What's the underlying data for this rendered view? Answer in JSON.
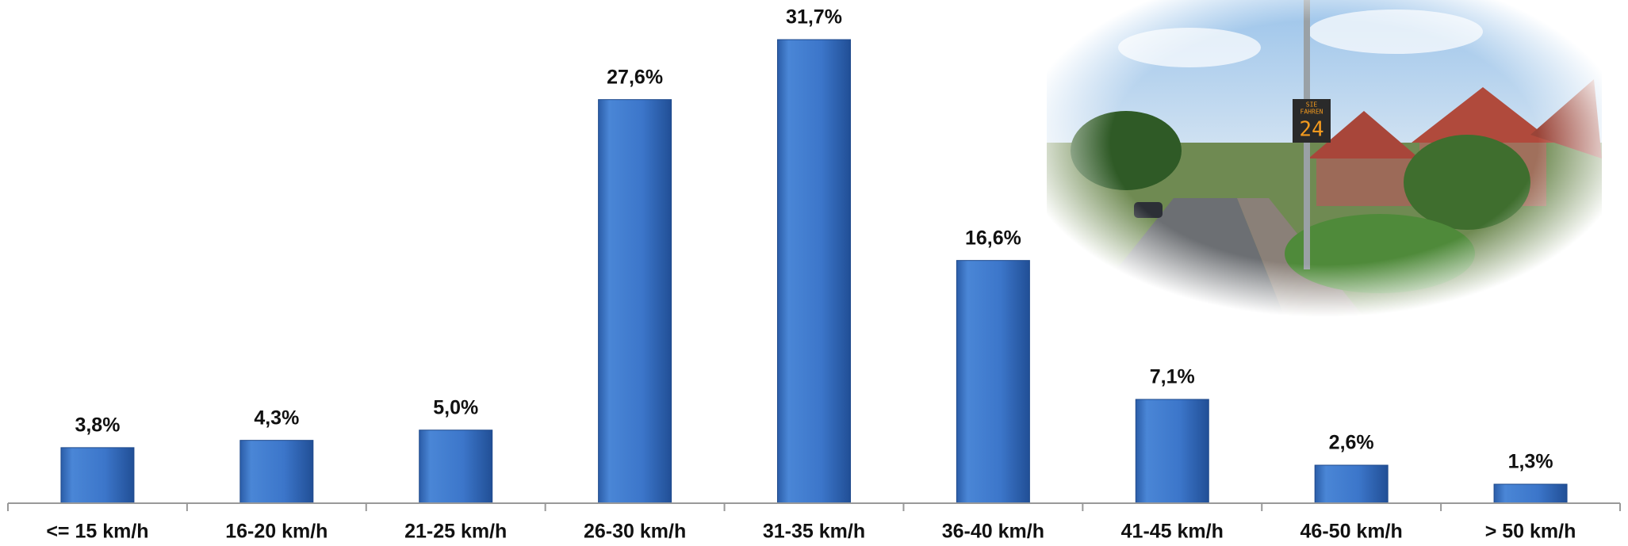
{
  "chart_data": {
    "type": "bar",
    "categories": [
      "<= 15 km/h",
      "16-20 km/h",
      "21-25 km/h",
      "26-30 km/h",
      "31-35 km/h",
      "36-40 km/h",
      "41-45 km/h",
      "46-50 km/h",
      "> 50 km/h"
    ],
    "values": [
      3.8,
      4.3,
      5.0,
      27.6,
      31.7,
      16.6,
      7.1,
      2.6,
      1.3
    ],
    "value_labels": [
      "3,8%",
      "4,3%",
      "5,0%",
      "27,6%",
      "31,7%",
      "16,6%",
      "7,1%",
      "2,6%",
      "1,3%"
    ],
    "color": "#3b74c9"
  },
  "photo": {
    "sign_text": [
      "SIE",
      "FAHREN"
    ],
    "sign_number": "24"
  }
}
